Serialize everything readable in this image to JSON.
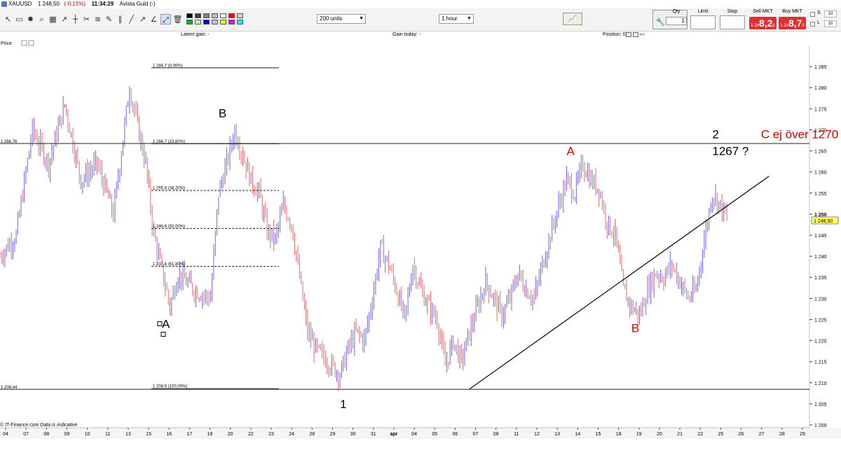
{
  "titlebar": {
    "instrument": "XAUUSD",
    "price": "1 248,50",
    "change": "(-0,15%)",
    "time": "11:34:29",
    "account": "Avista Guld (-)"
  },
  "toolbar": {
    "units_select": "200 units",
    "interval_select": "1 hour",
    "swatch_colors": [
      "#000000",
      "#404040",
      "#808080",
      "#c0c0c0",
      "#ffffff",
      "#ff0000",
      "#ffc0c0",
      "#00c000",
      "#c0ffc0",
      "#0000ff",
      "#c0c0ff",
      "#ffff00",
      "#ff00ff",
      "#00ffff"
    ],
    "qty_label": "Qty",
    "qty_value": "1",
    "limit_label": "Limit",
    "stop_label": "Stop",
    "sell_label": "Sell MKT",
    "sell_small": "1 24",
    "sell_big": "8,2",
    "sell_sup": "5",
    "buy_label": "Buy MKT",
    "buy_small": "1 24",
    "buy_big": "8,7",
    "buy_sup": "5",
    "s_label": "S",
    "l_label": "L",
    "s_value": "10",
    "l_value": "10"
  },
  "infobar": {
    "latent_gain": "Latent gain:  -",
    "gain_today": "Gain today:  -",
    "position_label": "Position:  0"
  },
  "chart": {
    "price_label": "Price",
    "footer_source": "© IT-Finance.com",
    "footer_note": "Data is indicative",
    "left_labels": {
      "top": "1 266,76",
      "bottom": "1 208,44"
    },
    "last_price_tag": "1 248,50",
    "price_axis_bold": "1 250",
    "up_color": "#6666ee",
    "down_color": "#e36a6a"
  },
  "chart_data": {
    "type": "candlestick",
    "instrument": "XAUUSD",
    "interval": "1 hour",
    "ylim": [
      1200,
      1290
    ],
    "y_ticks": [
      1200,
      1205,
      1210,
      1215,
      1220,
      1225,
      1230,
      1235,
      1240,
      1245,
      1250,
      1255,
      1260,
      1265,
      1270,
      1275,
      1280,
      1285
    ],
    "y_tick_labels": [
      "1 200",
      "1 205",
      "1 210",
      "1 215",
      "1 220",
      "1 225",
      "1 230",
      "1 235",
      "1 240",
      "1 245",
      "1 250",
      "1 255",
      "1 260",
      "1 265",
      "1 270",
      "1 275",
      "1 280",
      "1 285"
    ],
    "x_ticks": [
      "04",
      "07",
      "08",
      "09",
      "10",
      "11",
      "13",
      "15",
      "16",
      "17",
      "18",
      "20",
      "22",
      "23",
      "24",
      "28",
      "29",
      "30",
      "31",
      "apr",
      "04",
      "05",
      "06",
      "07",
      "08",
      "11",
      "12",
      "13",
      "14",
      "15",
      "18",
      "19",
      "20",
      "21",
      "22",
      "25",
      "26",
      "27",
      "28",
      "29"
    ],
    "price_path": [
      [
        0,
        1240
      ],
      [
        2,
        1245
      ],
      [
        4,
        1270
      ],
      [
        6,
        1262
      ],
      [
        8,
        1276
      ],
      [
        10,
        1258
      ],
      [
        12,
        1262
      ],
      [
        14,
        1250
      ],
      [
        16,
        1280
      ],
      [
        18,
        1262
      ],
      [
        19,
        1245
      ],
      [
        21,
        1228
      ],
      [
        22,
        1236
      ],
      [
        24,
        1232
      ],
      [
        26,
        1230
      ],
      [
        27,
        1255
      ],
      [
        28,
        1262
      ],
      [
        29,
        1270
      ],
      [
        31,
        1258
      ],
      [
        32,
        1255
      ],
      [
        33,
        1246
      ],
      [
        34,
        1244
      ],
      [
        35,
        1252
      ],
      [
        36,
        1248
      ],
      [
        37,
        1235
      ],
      [
        38,
        1222
      ],
      [
        39,
        1218
      ],
      [
        40,
        1216
      ],
      [
        41,
        1214
      ],
      [
        42,
        1212
      ],
      [
        43,
        1218
      ],
      [
        44,
        1222
      ],
      [
        45,
        1220
      ],
      [
        46,
        1230
      ],
      [
        47,
        1242
      ],
      [
        48,
        1238
      ],
      [
        49,
        1232
      ],
      [
        50,
        1225
      ],
      [
        51,
        1238
      ],
      [
        52,
        1232
      ],
      [
        53,
        1228
      ],
      [
        54,
        1225
      ],
      [
        55,
        1214
      ],
      [
        56,
        1220
      ],
      [
        57,
        1215
      ],
      [
        58,
        1222
      ],
      [
        59,
        1228
      ],
      [
        60,
        1234
      ],
      [
        61,
        1230
      ],
      [
        62,
        1226
      ],
      [
        63,
        1230
      ],
      [
        64,
        1236
      ],
      [
        65,
        1232
      ],
      [
        66,
        1230
      ],
      [
        67,
        1238
      ],
      [
        68,
        1245
      ],
      [
        69,
        1252
      ],
      [
        70,
        1258
      ],
      [
        71,
        1255
      ],
      [
        72,
        1262
      ],
      [
        73,
        1258
      ],
      [
        74,
        1256
      ],
      [
        75,
        1248
      ],
      [
        76,
        1245
      ],
      [
        77,
        1232
      ],
      [
        78,
        1228
      ],
      [
        79,
        1226
      ],
      [
        80,
        1232
      ],
      [
        81,
        1236
      ],
      [
        82,
        1235
      ],
      [
        83,
        1238
      ],
      [
        84,
        1234
      ],
      [
        85,
        1230
      ],
      [
        86,
        1232
      ],
      [
        87,
        1244
      ],
      [
        88,
        1255
      ],
      [
        89,
        1252
      ],
      [
        90,
        1248.5
      ]
    ],
    "fib_levels": [
      {
        "label": "1 284,7 (0,00%)",
        "value": 1284.7,
        "style": "solid"
      },
      {
        "label": "1 266,7 (23,60%)",
        "value": 1266.7,
        "style": "solid"
      },
      {
        "label": "1 255,6 (38,20%)",
        "value": 1255.6,
        "style": "dashed"
      },
      {
        "label": "1 246,6 (50,00%)",
        "value": 1246.6,
        "style": "dashed"
      },
      {
        "label": "1 237,6 (61,80%)",
        "value": 1237.6,
        "style": "dashed"
      },
      {
        "label": "1 208,6 (100,00%)",
        "value": 1208.6,
        "style": "solid"
      }
    ],
    "horizontal_lines": [
      1266.76,
      1208.44
    ],
    "trendline": {
      "from": {
        "x": 58,
        "y": 1208.5
      },
      "to": {
        "x": 95,
        "y": 1259
      }
    },
    "annotations": [
      {
        "text": "B",
        "color": "#000000",
        "x": 27,
        "y": 1273
      },
      {
        "text": "A",
        "color": "#000000",
        "x": 20,
        "y": 1223
      },
      {
        "text": "1",
        "color": "#000000",
        "x": 42,
        "y": 1204
      },
      {
        "text": "A",
        "color": "#d40000",
        "x": 70,
        "y": 1264
      },
      {
        "text": "B",
        "color": "#d40000",
        "x": 78,
        "y": 1222
      },
      {
        "text": "2",
        "color": "#000000",
        "x": 88,
        "y": 1268
      },
      {
        "text": "1267 ?",
        "color": "#000000",
        "x": 88,
        "y": 1264
      },
      {
        "text": "C ej över 1270",
        "color": "#d40000",
        "x": 94,
        "y": 1268
      }
    ]
  }
}
